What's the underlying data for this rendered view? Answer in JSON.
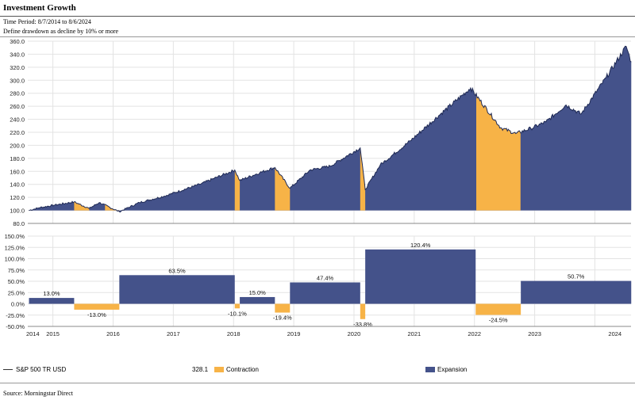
{
  "header": {
    "title": "Investment Growth",
    "period": "Time Period: 8/7/2014 to 8/6/2024",
    "definition": "Define drawdown as decline by 10% or more"
  },
  "legend": {
    "series_label": "S&P 500 TR USD",
    "series_value": "328.1",
    "contraction_label": "Contraction",
    "expansion_label": "Expansion"
  },
  "source": "Source: Morningstar Direct",
  "colors": {
    "expansion": "#44528A",
    "contraction": "#F7B347",
    "line": "#1F2A55"
  },
  "chart_data": [
    {
      "type": "area",
      "title": "Investment Growth",
      "ylim": [
        80,
        360
      ],
      "y_ticks": [
        "80.0",
        "100.0",
        "120.0",
        "140.0",
        "160.0",
        "180.0",
        "200.0",
        "220.0",
        "240.0",
        "260.0",
        "280.0",
        "300.0",
        "320.0",
        "340.0",
        "360.0"
      ],
      "x_ticks": [
        "2014",
        "2015",
        "2016",
        "2017",
        "2018",
        "2019",
        "2020",
        "2021",
        "2022",
        "2023",
        "2024"
      ],
      "grid": true,
      "series": [
        {
          "name": "S&P 500 TR USD",
          "x": [
            "2014-08",
            "2014-10",
            "2015-01",
            "2015-05",
            "2015-08",
            "2015-10",
            "2016-02",
            "2016-06",
            "2016-11",
            "2017-06",
            "2018-01",
            "2018-02",
            "2018-06",
            "2018-09",
            "2018-12",
            "2019-04",
            "2019-08",
            "2020-02",
            "2020-03",
            "2020-06",
            "2020-12",
            "2021-06",
            "2021-12",
            "2022-06",
            "2022-09",
            "2022-12",
            "2023-03",
            "2023-07",
            "2023-10",
            "2024-03",
            "2024-07",
            "2024-08"
          ],
          "y": [
            100,
            104,
            108,
            113,
            103,
            112,
            98,
            112,
            122,
            140,
            162,
            146,
            158,
            166,
            134,
            162,
            168,
            196,
            132,
            170,
            207,
            248,
            288,
            227,
            218,
            226,
            236,
            262,
            248,
            304,
            352,
            328
          ]
        }
      ],
      "contractions": [
        {
          "start": "2015-05",
          "end": "2015-08"
        },
        {
          "start": "2015-11",
          "end": "2016-02"
        },
        {
          "start": "2018-01",
          "end": "2018-02"
        },
        {
          "start": "2018-09",
          "end": "2018-12"
        },
        {
          "start": "2020-02",
          "end": "2020-03"
        },
        {
          "start": "2022-01",
          "end": "2022-10"
        }
      ]
    },
    {
      "type": "bar",
      "title": "",
      "ylim": [
        -50,
        150
      ],
      "y_ticks": [
        "-50.0%",
        "-25.0%",
        "0.0%",
        "25.0%",
        "50.0%",
        "75.0%",
        "100.0%",
        "125.0%",
        "150.0%"
      ],
      "grid": true,
      "bars": [
        {
          "label": "13.0%",
          "start": "2014-08",
          "end": "2015-05",
          "value": 13.0,
          "kind": "expansion"
        },
        {
          "label": "-13.0%",
          "start": "2015-05",
          "end": "2016-02",
          "value": -13.0,
          "kind": "contraction"
        },
        {
          "label": "63.5%",
          "start": "2016-02",
          "end": "2018-01",
          "value": 63.5,
          "kind": "expansion"
        },
        {
          "label": "-10.1%",
          "start": "2018-01",
          "end": "2018-02",
          "value": -10.1,
          "kind": "contraction"
        },
        {
          "label": "15.0%",
          "start": "2018-02",
          "end": "2018-09",
          "value": 15.0,
          "kind": "expansion"
        },
        {
          "label": "-19.4%",
          "start": "2018-09",
          "end": "2018-12",
          "value": -19.4,
          "kind": "contraction"
        },
        {
          "label": "47.4%",
          "start": "2018-12",
          "end": "2020-02",
          "value": 47.4,
          "kind": "expansion"
        },
        {
          "label": "-33.8%",
          "start": "2020-02",
          "end": "2020-03",
          "value": -33.8,
          "kind": "contraction"
        },
        {
          "label": "120.4%",
          "start": "2020-03",
          "end": "2022-01",
          "value": 120.4,
          "kind": "expansion"
        },
        {
          "label": "-24.5%",
          "start": "2022-01",
          "end": "2022-10",
          "value": -24.5,
          "kind": "contraction"
        },
        {
          "label": "50.7%",
          "start": "2022-10",
          "end": "2024-08",
          "value": 50.7,
          "kind": "expansion"
        }
      ]
    }
  ]
}
